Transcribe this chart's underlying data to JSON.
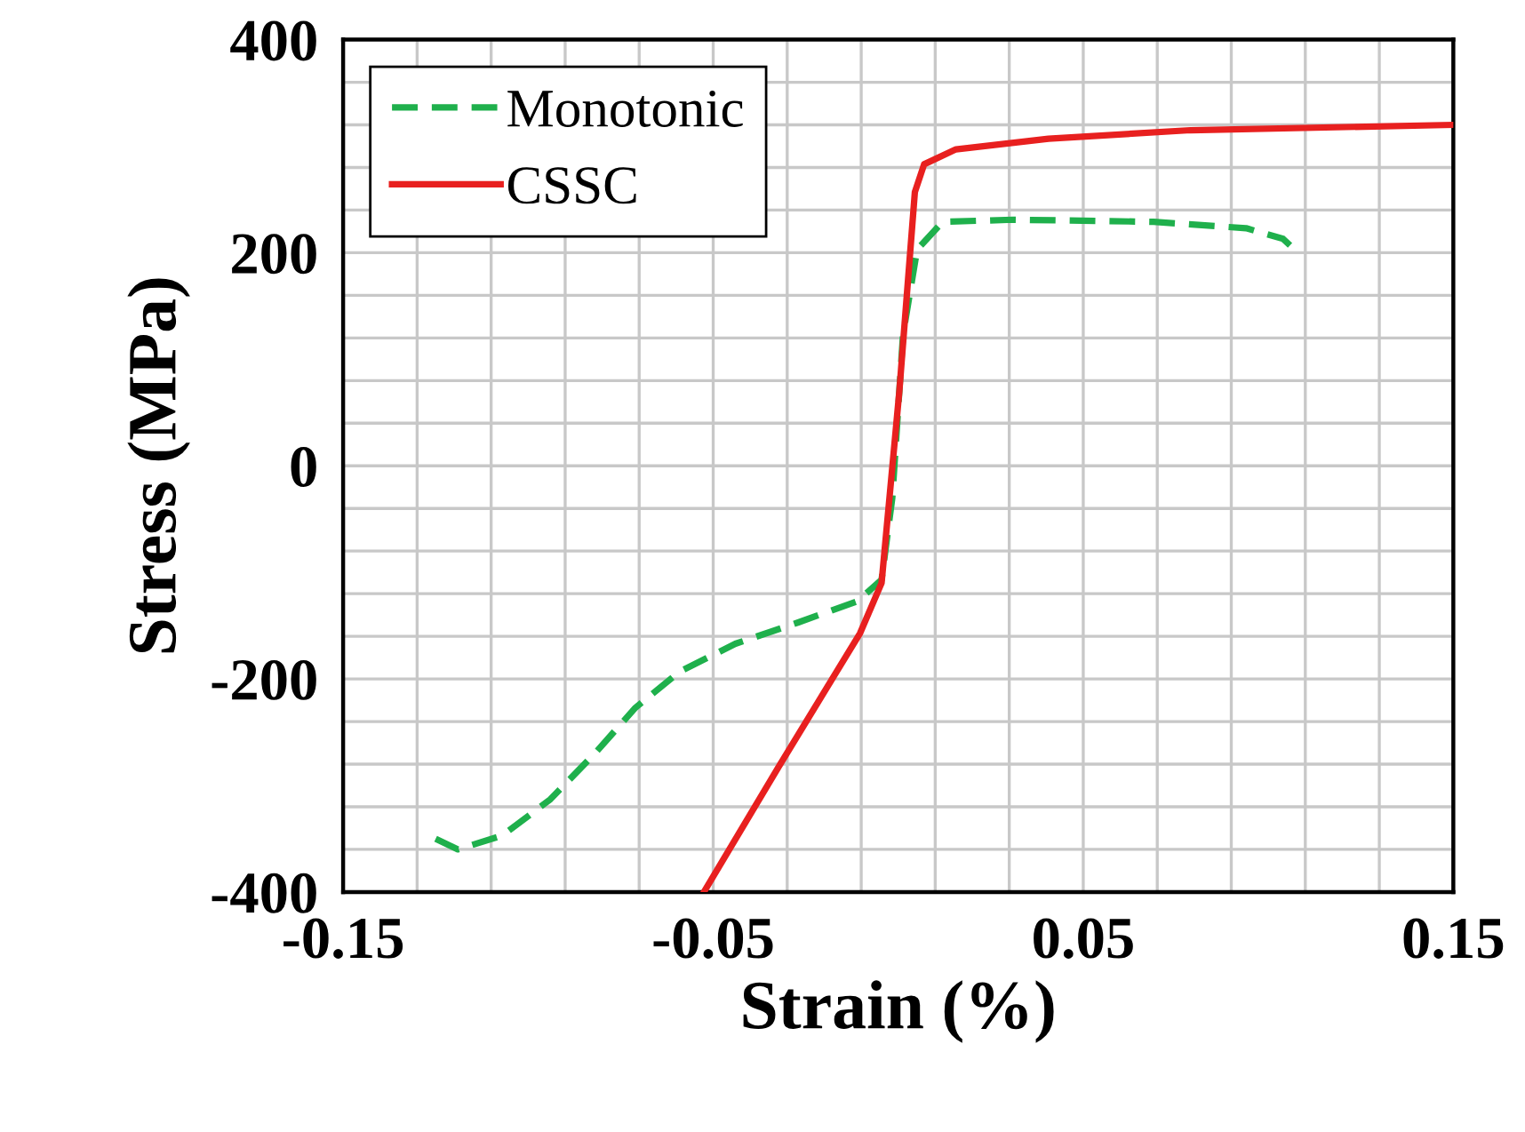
{
  "chart_data": {
    "type": "line",
    "xlabel": "Strain (%)",
    "ylabel": "Stress (MPa)",
    "xlim": [
      -0.15,
      0.15
    ],
    "ylim": [
      -400,
      400
    ],
    "xticks": [
      -0.15,
      {
        "value": -0.13,
        "label": null
      },
      {
        "value": -0.11,
        "label": null
      },
      {
        "value": -0.09,
        "label": null
      },
      {
        "value": -0.07,
        "label": null
      },
      -0.05,
      {
        "value": -0.03,
        "label": null
      },
      {
        "value": -0.01,
        "label": null
      },
      {
        "value": 0.01,
        "label": null
      },
      {
        "value": 0.03,
        "label": null
      },
      0.05,
      {
        "value": 0.07,
        "label": null
      },
      {
        "value": 0.09,
        "label": null
      },
      {
        "value": 0.11,
        "label": null
      },
      {
        "value": 0.13,
        "label": null
      },
      0.15
    ],
    "yticks": [
      -400,
      {
        "value": -360,
        "label": null
      },
      {
        "value": -320,
        "label": null
      },
      {
        "value": -280,
        "label": null
      },
      {
        "value": -240,
        "label": null
      },
      -200,
      {
        "value": -160,
        "label": null
      },
      {
        "value": -120,
        "label": null
      },
      {
        "value": -80,
        "label": null
      },
      {
        "value": -40,
        "label": null
      },
      0,
      {
        "value": 40,
        "label": null
      },
      {
        "value": 80,
        "label": null
      },
      {
        "value": 120,
        "label": null
      },
      {
        "value": 160,
        "label": null
      },
      200,
      {
        "value": 240,
        "label": null
      },
      {
        "value": 280,
        "label": null
      },
      {
        "value": 320,
        "label": null
      },
      {
        "value": 360,
        "label": null
      },
      400
    ],
    "grid": true,
    "legend": "top left",
    "marker": "none",
    "series": [
      {
        "name": "Monotonic",
        "color": "#1fb04c",
        "line_style": "dashed",
        "x": [
          -0.125,
          -0.119,
          -0.107,
          -0.094,
          -0.082,
          -0.071,
          -0.059,
          -0.044,
          -0.027,
          -0.011,
          -0.0045,
          -0.0016,
          0.0013,
          0.0051,
          0.012,
          0.031,
          0.069,
          0.094,
          0.104,
          0.108
        ],
        "values": [
          -350,
          -360,
          -347,
          -313,
          -270,
          -227,
          -193,
          -167,
          -147,
          -127,
          -107,
          -30,
          123,
          203,
          229,
          231,
          229,
          223,
          213,
          200
        ]
      },
      {
        "name": "CSSC",
        "color": "#e8201f",
        "line_style": "solid",
        "x": [
          -0.0525,
          -0.0324,
          -0.0103,
          -0.0045,
          0.0003,
          0.0045,
          0.007,
          0.0156,
          0.0406,
          0.079,
          0.15
        ],
        "values": [
          -400,
          -283,
          -157,
          -110,
          70,
          257,
          283,
          297,
          307,
          315,
          320
        ]
      }
    ]
  }
}
